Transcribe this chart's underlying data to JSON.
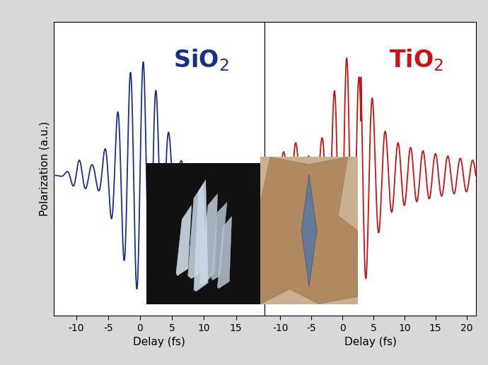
{
  "fig_width": 6.9,
  "fig_height": 5.17,
  "dpi": 100,
  "background_color": "#d8d8d8",
  "panel_background": "#ffffff",
  "sio2_color": "#1a2f8a",
  "tio2_color": "#cc1111",
  "sio2_label": "SiO$_2$",
  "tio2_label": "TiO$_2$",
  "sio2_xlim": [
    -13.5,
    19.5
  ],
  "tio2_xlim": [
    -12.5,
    21.5
  ],
  "sio2_xticks": [
    -10,
    -5,
    0,
    5,
    10,
    15
  ],
  "tio2_xticks": [
    -10,
    -5,
    0,
    5,
    10,
    15,
    20
  ],
  "xlabel": "Delay (fs)",
  "ylabel": "Polarization (a.u.)",
  "label_fontsize": 11,
  "tick_fontsize": 10,
  "title_fontsize": 24
}
